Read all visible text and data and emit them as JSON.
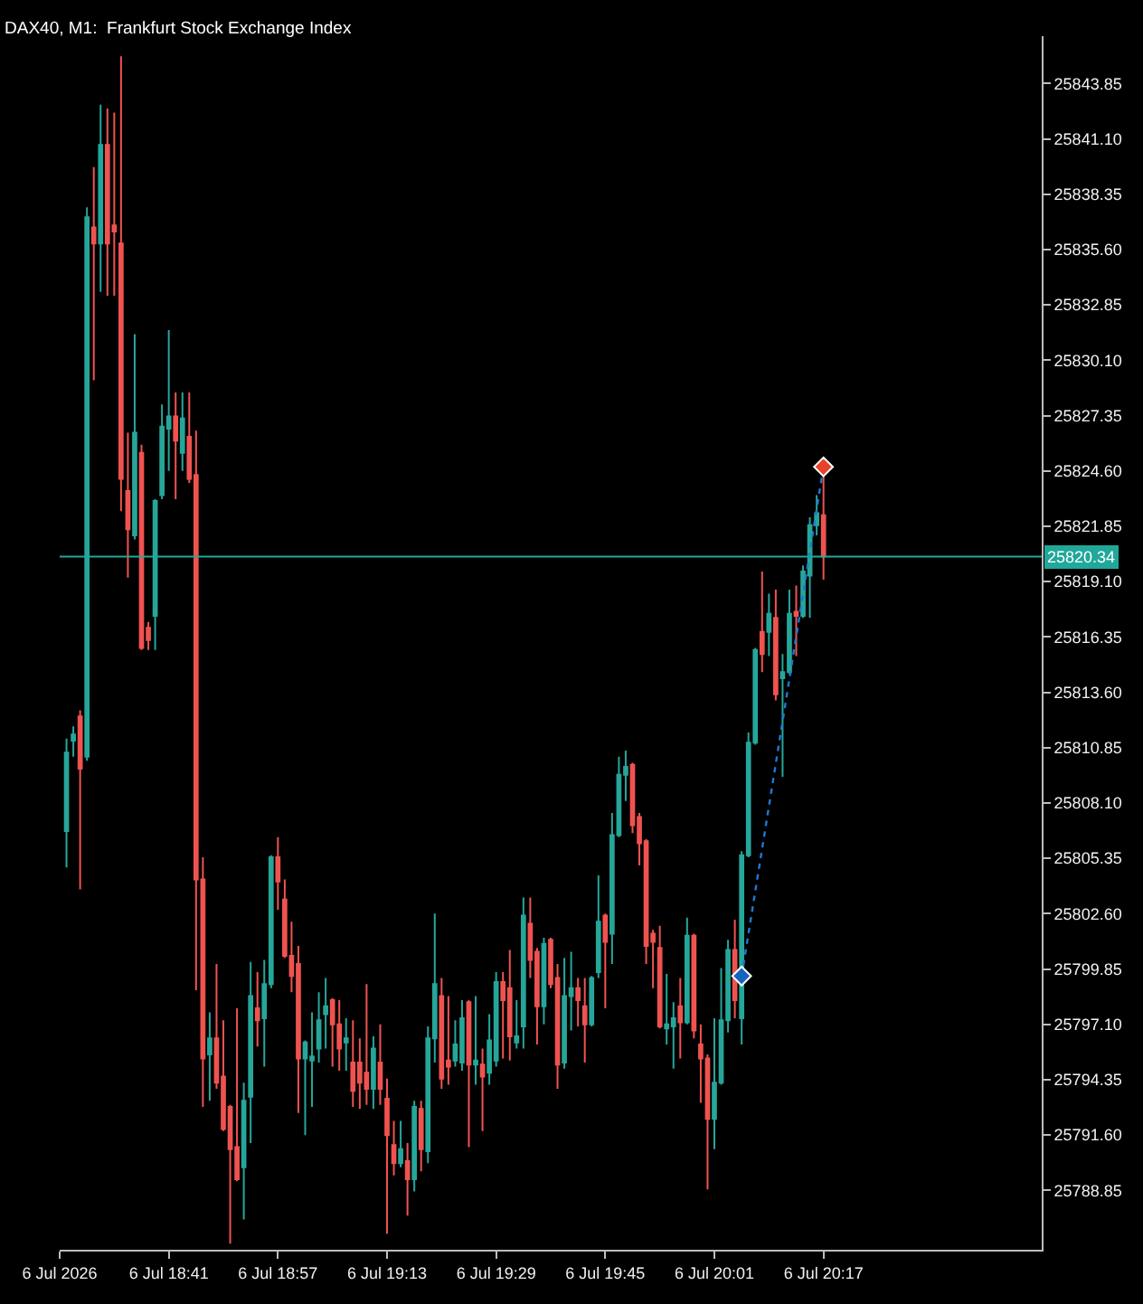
{
  "chart_data": {
    "type": "candlestick",
    "title": "DAX40, M1:  Frankfurt Stock Exchange Index",
    "series": [
      {
        "x": [
          "2026-07-06T18:26",
          "2026-07-06T18:27",
          "2026-07-06T18:28",
          "2026-07-06T18:29",
          "2026-07-06T18:30",
          "2026-07-06T18:31",
          "2026-07-06T18:32",
          "2026-07-06T18:33",
          "2026-07-06T18:34",
          "2026-07-06T18:35",
          "2026-07-06T18:36",
          "2026-07-06T18:37",
          "2026-07-06T18:38",
          "2026-07-06T18:39",
          "2026-07-06T18:40",
          "2026-07-06T18:41",
          "2026-07-06T18:42",
          "2026-07-06T18:43",
          "2026-07-06T18:44",
          "2026-07-06T18:45",
          "2026-07-06T18:46",
          "2026-07-06T18:47",
          "2026-07-06T18:48",
          "2026-07-06T18:49",
          "2026-07-06T18:50",
          "2026-07-06T18:51",
          "2026-07-06T18:52",
          "2026-07-06T18:53",
          "2026-07-06T18:54",
          "2026-07-06T18:55",
          "2026-07-06T18:56",
          "2026-07-06T18:57",
          "2026-07-06T18:58",
          "2026-07-06T18:59",
          "2026-07-06T19:00",
          "2026-07-06T19:01",
          "2026-07-06T19:02",
          "2026-07-06T19:03",
          "2026-07-06T19:04",
          "2026-07-06T19:05",
          "2026-07-06T19:06",
          "2026-07-06T19:07",
          "2026-07-06T19:08",
          "2026-07-06T19:09",
          "2026-07-06T19:10",
          "2026-07-06T19:11",
          "2026-07-06T19:12",
          "2026-07-06T19:13",
          "2026-07-06T19:14",
          "2026-07-06T19:15",
          "2026-07-06T19:16",
          "2026-07-06T19:17",
          "2026-07-06T19:18",
          "2026-07-06T19:19",
          "2026-07-06T19:20",
          "2026-07-06T19:21",
          "2026-07-06T19:22",
          "2026-07-06T19:23",
          "2026-07-06T19:24",
          "2026-07-06T19:25",
          "2026-07-06T19:26",
          "2026-07-06T19:27",
          "2026-07-06T19:28",
          "2026-07-06T19:29",
          "2026-07-06T19:30",
          "2026-07-06T19:31",
          "2026-07-06T19:32",
          "2026-07-06T19:33",
          "2026-07-06T19:34",
          "2026-07-06T19:35",
          "2026-07-06T19:36",
          "2026-07-06T19:37",
          "2026-07-06T19:38",
          "2026-07-06T19:39",
          "2026-07-06T19:40",
          "2026-07-06T19:41",
          "2026-07-06T19:42",
          "2026-07-06T19:43",
          "2026-07-06T19:44",
          "2026-07-06T19:45",
          "2026-07-06T19:46",
          "2026-07-06T19:47",
          "2026-07-06T19:48",
          "2026-07-06T19:49",
          "2026-07-06T19:50",
          "2026-07-06T19:51",
          "2026-07-06T19:52",
          "2026-07-06T19:53",
          "2026-07-06T19:54",
          "2026-07-06T19:55",
          "2026-07-06T19:56",
          "2026-07-06T19:57",
          "2026-07-06T19:58",
          "2026-07-06T19:59",
          "2026-07-06T20:00",
          "2026-07-06T20:01",
          "2026-07-06T20:02",
          "2026-07-06T20:03",
          "2026-07-06T20:04",
          "2026-07-06T20:05",
          "2026-07-06T20:06",
          "2026-07-06T20:07",
          "2026-07-06T20:08",
          "2026-07-06T20:09",
          "2026-07-06T20:10",
          "2026-07-06T20:11",
          "2026-07-06T20:12",
          "2026-07-06T20:13",
          "2026-07-06T20:14",
          "2026-07-06T20:15",
          "2026-07-06T20:16",
          "2026-07-06T20:17"
        ],
        "ohlc": [
          [
            25806.7,
            25811.3,
            25804.9,
            25810.6
          ],
          [
            25811.2,
            25811.9,
            25810.4,
            25811.5
          ],
          [
            25812.4,
            25812.7,
            25803.8,
            25809.8
          ],
          [
            25810.4,
            25837.7,
            25810.2,
            25837.2
          ],
          [
            25836.7,
            25839.7,
            25829.1,
            25835.9
          ],
          [
            25835.9,
            25842.8,
            25833.5,
            25840.8
          ],
          [
            25840.8,
            25842.6,
            25833.3,
            25835.9
          ],
          [
            25836.8,
            25842.4,
            25833.3,
            25836.5
          ],
          [
            25835.9,
            25845.2,
            25822.6,
            25824.2
          ],
          [
            25823.6,
            25826.5,
            25819.3,
            25821.7
          ],
          [
            25821.4,
            25831.4,
            25821.2,
            25826.5
          ],
          [
            25825.5,
            25825.9,
            25815.7,
            25815.8
          ],
          [
            25816.8,
            25817.1,
            25815.7,
            25816.2
          ],
          [
            25817.4,
            25823.2,
            25815.7,
            25823.1
          ],
          [
            25823.4,
            25827.9,
            25823.2,
            25826.8
          ],
          [
            25826.7,
            25831.6,
            25824.6,
            25827.3
          ],
          [
            25827.3,
            25828.5,
            25823.2,
            25826.1
          ],
          [
            25825.5,
            25828.5,
            25824.6,
            25827.2
          ],
          [
            25826.3,
            25828.5,
            25824.0,
            25824.2
          ],
          [
            25824.4,
            25826.6,
            25798.8,
            25804.3
          ],
          [
            25804.3,
            25805.4,
            25793.0,
            25795.4
          ],
          [
            25795.6,
            25797.7,
            25793.3,
            25796.4
          ],
          [
            25796.4,
            25800.1,
            25793.9,
            25794.2
          ],
          [
            25794.5,
            25797.3,
            25791.8,
            25791.9
          ],
          [
            25793.0,
            25793.1,
            25786.2,
            25790.9
          ],
          [
            25791.0,
            25797.9,
            25789.3,
            25789.4
          ],
          [
            25790.0,
            25794.2,
            25787.4,
            25793.3
          ],
          [
            25793.5,
            25800.2,
            25791.2,
            25798.5
          ],
          [
            25797.9,
            25799.7,
            25796.0,
            25797.3
          ],
          [
            25797.4,
            25800.3,
            25795.0,
            25799.1
          ],
          [
            25799.1,
            25805.5,
            25798.9,
            25805.4
          ],
          [
            25805.4,
            25806.4,
            25802.8,
            25804.2
          ],
          [
            25803.3,
            25804.3,
            25800.4,
            25800.5
          ],
          [
            25800.5,
            25802.2,
            25798.7,
            25799.5
          ],
          [
            25800.1,
            25801.0,
            25792.7,
            25795.4
          ],
          [
            25795.4,
            25796.3,
            25791.6,
            25796.2
          ],
          [
            25795.3,
            25797.7,
            25793.0,
            25795.5
          ],
          [
            25795.9,
            25798.7,
            25795.2,
            25797.3
          ],
          [
            25797.6,
            25799.4,
            25795.9,
            25798.0
          ],
          [
            25798.3,
            25798.4,
            25795.0,
            25797.1
          ],
          [
            25797.1,
            25798.3,
            25794.8,
            25795.9
          ],
          [
            25796.2,
            25797.4,
            25794.8,
            25796.4
          ],
          [
            25795.2,
            25797.3,
            25793.0,
            25793.8
          ],
          [
            25795.2,
            25796.4,
            25792.9,
            25794.2
          ],
          [
            25794.7,
            25799.1,
            25793.1,
            25793.9
          ],
          [
            25793.9,
            25796.5,
            25792.9,
            25795.9
          ],
          [
            25795.2,
            25797.1,
            25793.1,
            25793.9
          ],
          [
            25793.4,
            25794.4,
            25786.7,
            25791.6
          ],
          [
            25791.1,
            25792.3,
            25789.6,
            25790.2
          ],
          [
            25790.2,
            25792.3,
            25790.0,
            25790.9
          ],
          [
            25790.3,
            25791.2,
            25787.6,
            25789.4
          ],
          [
            25789.4,
            25793.3,
            25788.8,
            25793.0
          ],
          [
            25792.9,
            25793.3,
            25789.8,
            25790.9
          ],
          [
            25790.8,
            25797.0,
            25790.2,
            25796.4
          ],
          [
            25796.4,
            25802.6,
            25795.2,
            25799.1
          ],
          [
            25798.5,
            25799.4,
            25793.9,
            25794.4
          ],
          [
            25795.3,
            25798.5,
            25794.1,
            25795.0
          ],
          [
            25795.3,
            25797.3,
            25795.0,
            25796.1
          ],
          [
            25795.2,
            25798.3,
            25794.8,
            25797.4
          ],
          [
            25798.2,
            25798.3,
            25791.0,
            25795.1
          ],
          [
            25795.1,
            25798.5,
            25794.1,
            25795.3
          ],
          [
            25795.1,
            25795.9,
            25791.8,
            25794.5
          ],
          [
            25794.7,
            25797.6,
            25794.1,
            25796.3
          ],
          [
            25795.3,
            25799.7,
            25795.0,
            25799.2
          ],
          [
            25799.2,
            25799.7,
            25795.4,
            25798.3
          ],
          [
            25798.9,
            25800.8,
            25795.3,
            25796.5
          ],
          [
            25796.2,
            25798.3,
            25795.9,
            25796.5
          ],
          [
            25797.0,
            25803.4,
            25795.9,
            25802.5
          ],
          [
            25802.1,
            25803.4,
            25799.4,
            25800.3
          ],
          [
            25800.7,
            25800.9,
            25796.1,
            25798.0
          ],
          [
            25798.0,
            25801.4,
            25797.1,
            25801.1
          ],
          [
            25801.3,
            25801.4,
            25798.9,
            25799.1
          ],
          [
            25799.4,
            25800.1,
            25793.9,
            25795.1
          ],
          [
            25795.2,
            25800.4,
            25794.9,
            25798.5
          ],
          [
            25798.5,
            25800.7,
            25796.8,
            25798.9
          ],
          [
            25798.9,
            25799.4,
            25797.0,
            25798.3
          ],
          [
            25798.0,
            25799.4,
            25795.2,
            25797.1
          ],
          [
            25797.1,
            25799.5,
            25797.0,
            25799.4
          ],
          [
            25799.7,
            25804.5,
            25799.4,
            25802.2
          ],
          [
            25802.5,
            25802.6,
            25797.9,
            25801.2
          ],
          [
            25801.6,
            25807.6,
            25800.1,
            25806.5
          ],
          [
            25806.5,
            25810.4,
            25806.4,
            25809.5
          ],
          [
            25809.5,
            25810.7,
            25808.2,
            25809.9
          ],
          [
            25810.0,
            25810.1,
            25806.6,
            25807.0
          ],
          [
            25807.4,
            25807.6,
            25805.0,
            25806.1
          ],
          [
            25806.2,
            25806.3,
            25800.1,
            25801.0
          ],
          [
            25801.6,
            25801.8,
            25798.9,
            25801.2
          ],
          [
            25800.9,
            25802.0,
            25796.9,
            25797.0
          ],
          [
            25796.9,
            25799.6,
            25796.1,
            25797.1
          ],
          [
            25797.0,
            25798.2,
            25794.9,
            25797.4
          ],
          [
            25798.0,
            25799.4,
            25795.4,
            25797.2
          ],
          [
            25797.2,
            25802.4,
            25797.1,
            25801.5
          ],
          [
            25801.5,
            25801.6,
            25796.4,
            25796.8
          ],
          [
            25796.1,
            25797.1,
            25793.2,
            25795.4
          ],
          [
            25795.4,
            25795.6,
            25788.9,
            25792.4
          ],
          [
            25792.4,
            25797.4,
            25790.9,
            25794.2
          ],
          [
            25794.2,
            25799.9,
            25794.1,
            25797.3
          ],
          [
            25797.3,
            25801.3,
            25796.7,
            25800.8
          ],
          [
            25800.8,
            25802.3,
            25797.4,
            25798.3
          ],
          [
            25797.4,
            25805.7,
            25796.1,
            25805.5
          ],
          [
            25805.5,
            25811.6,
            25805.4,
            25811.1
          ],
          [
            25811.1,
            25815.8,
            25811.0,
            25815.7
          ],
          [
            25816.6,
            25819.6,
            25814.6,
            25815.5
          ],
          [
            25816.6,
            25818.5,
            25815.4,
            25817.5
          ],
          [
            25817.3,
            25818.7,
            25813.2,
            25813.5
          ],
          [
            25814.3,
            25815.5,
            25809.4,
            25814.6
          ],
          [
            25814.6,
            25818.7,
            25814.5,
            25817.5
          ],
          [
            25817.6,
            25818.9,
            25815.4,
            25817.4
          ],
          [
            25817.4,
            25819.9,
            25817.3,
            25819.6
          ],
          [
            25819.4,
            25822.3,
            25817.3,
            25821.9
          ],
          [
            25821.9,
            25823.4,
            25821.4,
            25822.5
          ],
          [
            25822.4,
            25824.9,
            25819.2,
            25820.34
          ]
        ],
        "colors": [
          "#26a69a",
          "#26a69a",
          "#ef5350",
          "#26a69a",
          "#ef5350",
          "#26a69a",
          "#ef5350",
          "#ef5350",
          "#ef5350",
          "#ef5350",
          "#26a69a",
          "#ef5350",
          "#ef5350",
          "#26a69a",
          "#26a69a",
          "#26a69a",
          "#ef5350",
          "#26a69a",
          "#ef5350",
          "#ef5350",
          "#ef5350",
          "#26a69a",
          "#ef5350",
          "#ef5350",
          "#ef5350",
          "#ef5350",
          "#26a69a",
          "#26a69a",
          "#ef5350",
          "#26a69a",
          "#26a69a",
          "#ef5350",
          "#ef5350",
          "#ef5350",
          "#ef5350",
          "#26a69a",
          "#26a69a",
          "#26a69a",
          "#26a69a",
          "#ef5350",
          "#ef5350",
          "#26a69a",
          "#ef5350",
          "#ef5350",
          "#ef5350",
          "#26a69a",
          "#ef5350",
          "#ef5350",
          "#ef5350",
          "#26a69a",
          "#ef5350",
          "#26a69a",
          "#ef5350",
          "#26a69a",
          "#26a69a",
          "#ef5350",
          "#ef5350",
          "#26a69a",
          "#26a69a",
          "#ef5350",
          "#26a69a",
          "#ef5350",
          "#26a69a",
          "#26a69a",
          "#ef5350",
          "#ef5350",
          "#26a69a",
          "#26a69a",
          "#ef5350",
          "#ef5350",
          "#26a69a",
          "#ef5350",
          "#ef5350",
          "#26a69a",
          "#26a69a",
          "#ef5350",
          "#ef5350",
          "#26a69a",
          "#26a69a",
          "#ef5350",
          "#26a69a",
          "#26a69a",
          "#26a69a",
          "#ef5350",
          "#ef5350",
          "#ef5350",
          "#ef5350",
          "#ef5350",
          "#26a69a",
          "#26a69a",
          "#ef5350",
          "#26a69a",
          "#ef5350",
          "#ef5350",
          "#ef5350",
          "#26a69a",
          "#26a69a",
          "#26a69a",
          "#ef5350",
          "#26a69a",
          "#26a69a",
          "#26a69a",
          "#ef5350",
          "#26a69a",
          "#ef5350",
          "#26a69a",
          "#26a69a",
          "#ef5350",
          "#26a69a",
          "#26a69a",
          "#26a69a",
          "#ef5350"
        ]
      },
      {
        "type": "line",
        "x": [
          "2026-07-06T20:05",
          "2026-07-06T20:17"
        ],
        "values": [
          25799.5,
          25824.8
        ],
        "color": "#1e78d2",
        "colors": [
          "#1565c0",
          "#e8412c"
        ],
        "line_style": "dotted",
        "marker": "diamond"
      }
    ],
    "xlim": [
      "2026-07-06T18:25",
      "2026-07-06T20:49"
    ],
    "xticks": [
      {
        "value": "2026-07-06T18:25",
        "label": "6 Jul 2026"
      },
      {
        "value": "2026-07-06T18:41",
        "label": "6 Jul 18:41"
      },
      {
        "value": "2026-07-06T18:57",
        "label": "6 Jul 18:57"
      },
      {
        "value": "2026-07-06T19:13",
        "label": "6 Jul 19:13"
      },
      {
        "value": "2026-07-06T19:29",
        "label": "6 Jul 19:29"
      },
      {
        "value": "2026-07-06T19:45",
        "label": "6 Jul 19:45"
      },
      {
        "value": "2026-07-06T20:01",
        "label": "6 Jul 20:01"
      },
      {
        "value": "2026-07-06T20:17",
        "label": "6 Jul 20:17"
      }
    ],
    "ylim": [
      25785.9,
      25846.2
    ],
    "yticks": [
      25843.85,
      {
        "value": 25841.1,
        "label": "25841.10"
      },
      25838.35,
      {
        "value": 25835.6,
        "label": "25835.60"
      },
      25832.85,
      {
        "value": 25830.1,
        "label": "25830.10"
      },
      25827.35,
      {
        "value": 25824.6,
        "label": "25824.60"
      },
      25821.85,
      {
        "value": 25819.1,
        "label": "25819.10"
      },
      25816.35,
      {
        "value": 25813.6,
        "label": "25813.60"
      },
      25810.85,
      {
        "value": 25808.1,
        "label": "25808.10"
      },
      25805.35,
      {
        "value": 25802.6,
        "label": "25802.60"
      },
      25799.85,
      {
        "value": 25797.1,
        "label": "25797.10"
      },
      25794.35,
      {
        "value": 25791.6,
        "label": "25791.60"
      },
      25788.85
    ],
    "ref_lines": [
      {
        "axis": "y",
        "value": 25820.34,
        "label": "25820.34",
        "color": "#20a89a"
      }
    ]
  }
}
